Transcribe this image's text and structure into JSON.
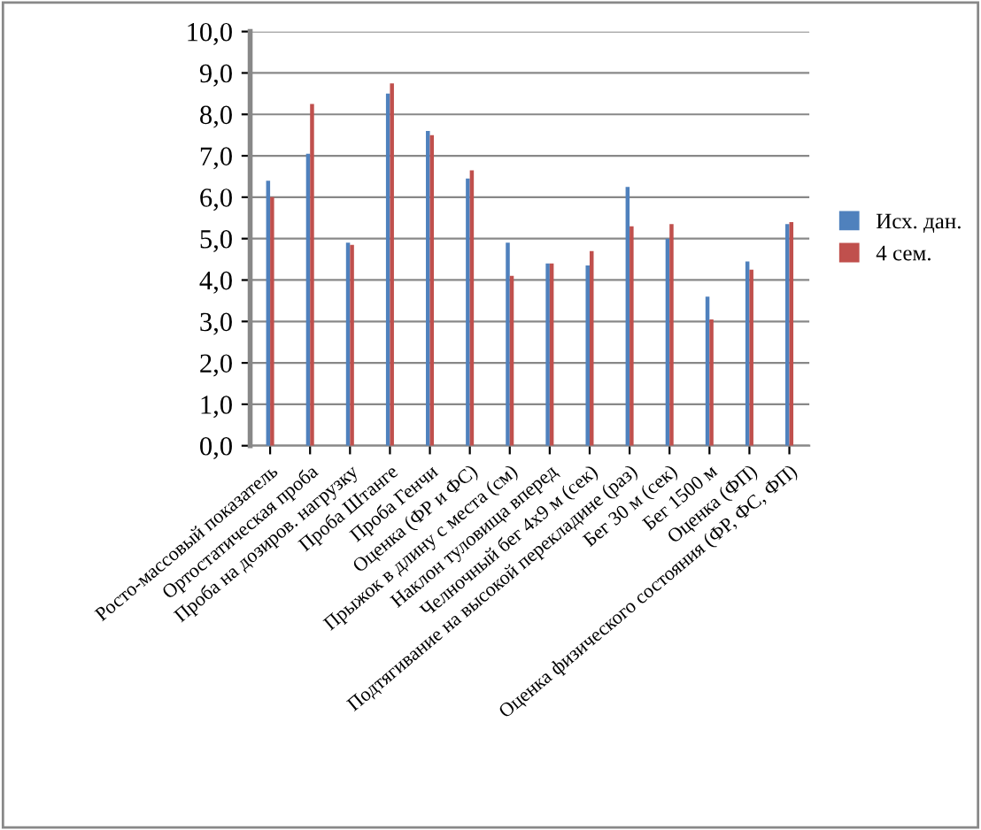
{
  "chart_data": {
    "type": "bar",
    "categories": [
      "Росто-массовый показатель",
      "Ортостатическая проба",
      "Проба на дозиров. нагрузку",
      "Проба Штанге",
      "Проба Генчи",
      "Оценка (ФР и ФС)",
      "Прыжок в длину с места (см)",
      "Наклон туловища вперед",
      "Челночный бег 4х9 м (сек)",
      "Подтягивание на высокой перекладине (раз)",
      "Бег 30 м (сек)",
      "Бег 1500 м",
      "Оценка (ФП)",
      "Оценка физического состояния (ФР, ФС, ФП)"
    ],
    "series": [
      {
        "name": "Исх. дан.",
        "color": "#4f81bd",
        "values": [
          6.4,
          7.05,
          4.9,
          8.5,
          7.6,
          6.45,
          4.9,
          4.4,
          4.35,
          6.25,
          5.0,
          3.6,
          4.45,
          5.35
        ]
      },
      {
        "name": "4 сем.",
        "color": "#c0504d",
        "values": [
          6.0,
          8.25,
          4.85,
          8.75,
          7.5,
          6.65,
          4.1,
          4.4,
          4.7,
          5.3,
          5.35,
          3.05,
          4.25,
          5.4
        ]
      }
    ],
    "ylim": [
      0,
      10
    ],
    "yticks": [
      {
        "value": 0,
        "label": "0,0"
      },
      {
        "value": 1,
        "label": "1,0"
      },
      {
        "value": 2,
        "label": "2,0"
      },
      {
        "value": 3,
        "label": "3,0"
      },
      {
        "value": 4,
        "label": "4,0"
      },
      {
        "value": 5,
        "label": "5,0"
      },
      {
        "value": 6,
        "label": "6,0"
      },
      {
        "value": 7,
        "label": "7,0"
      },
      {
        "value": 8,
        "label": "8,0"
      },
      {
        "value": 9,
        "label": "9,0"
      },
      {
        "value": 10,
        "label": "10,0"
      }
    ],
    "grid": "y",
    "legend": "right"
  }
}
